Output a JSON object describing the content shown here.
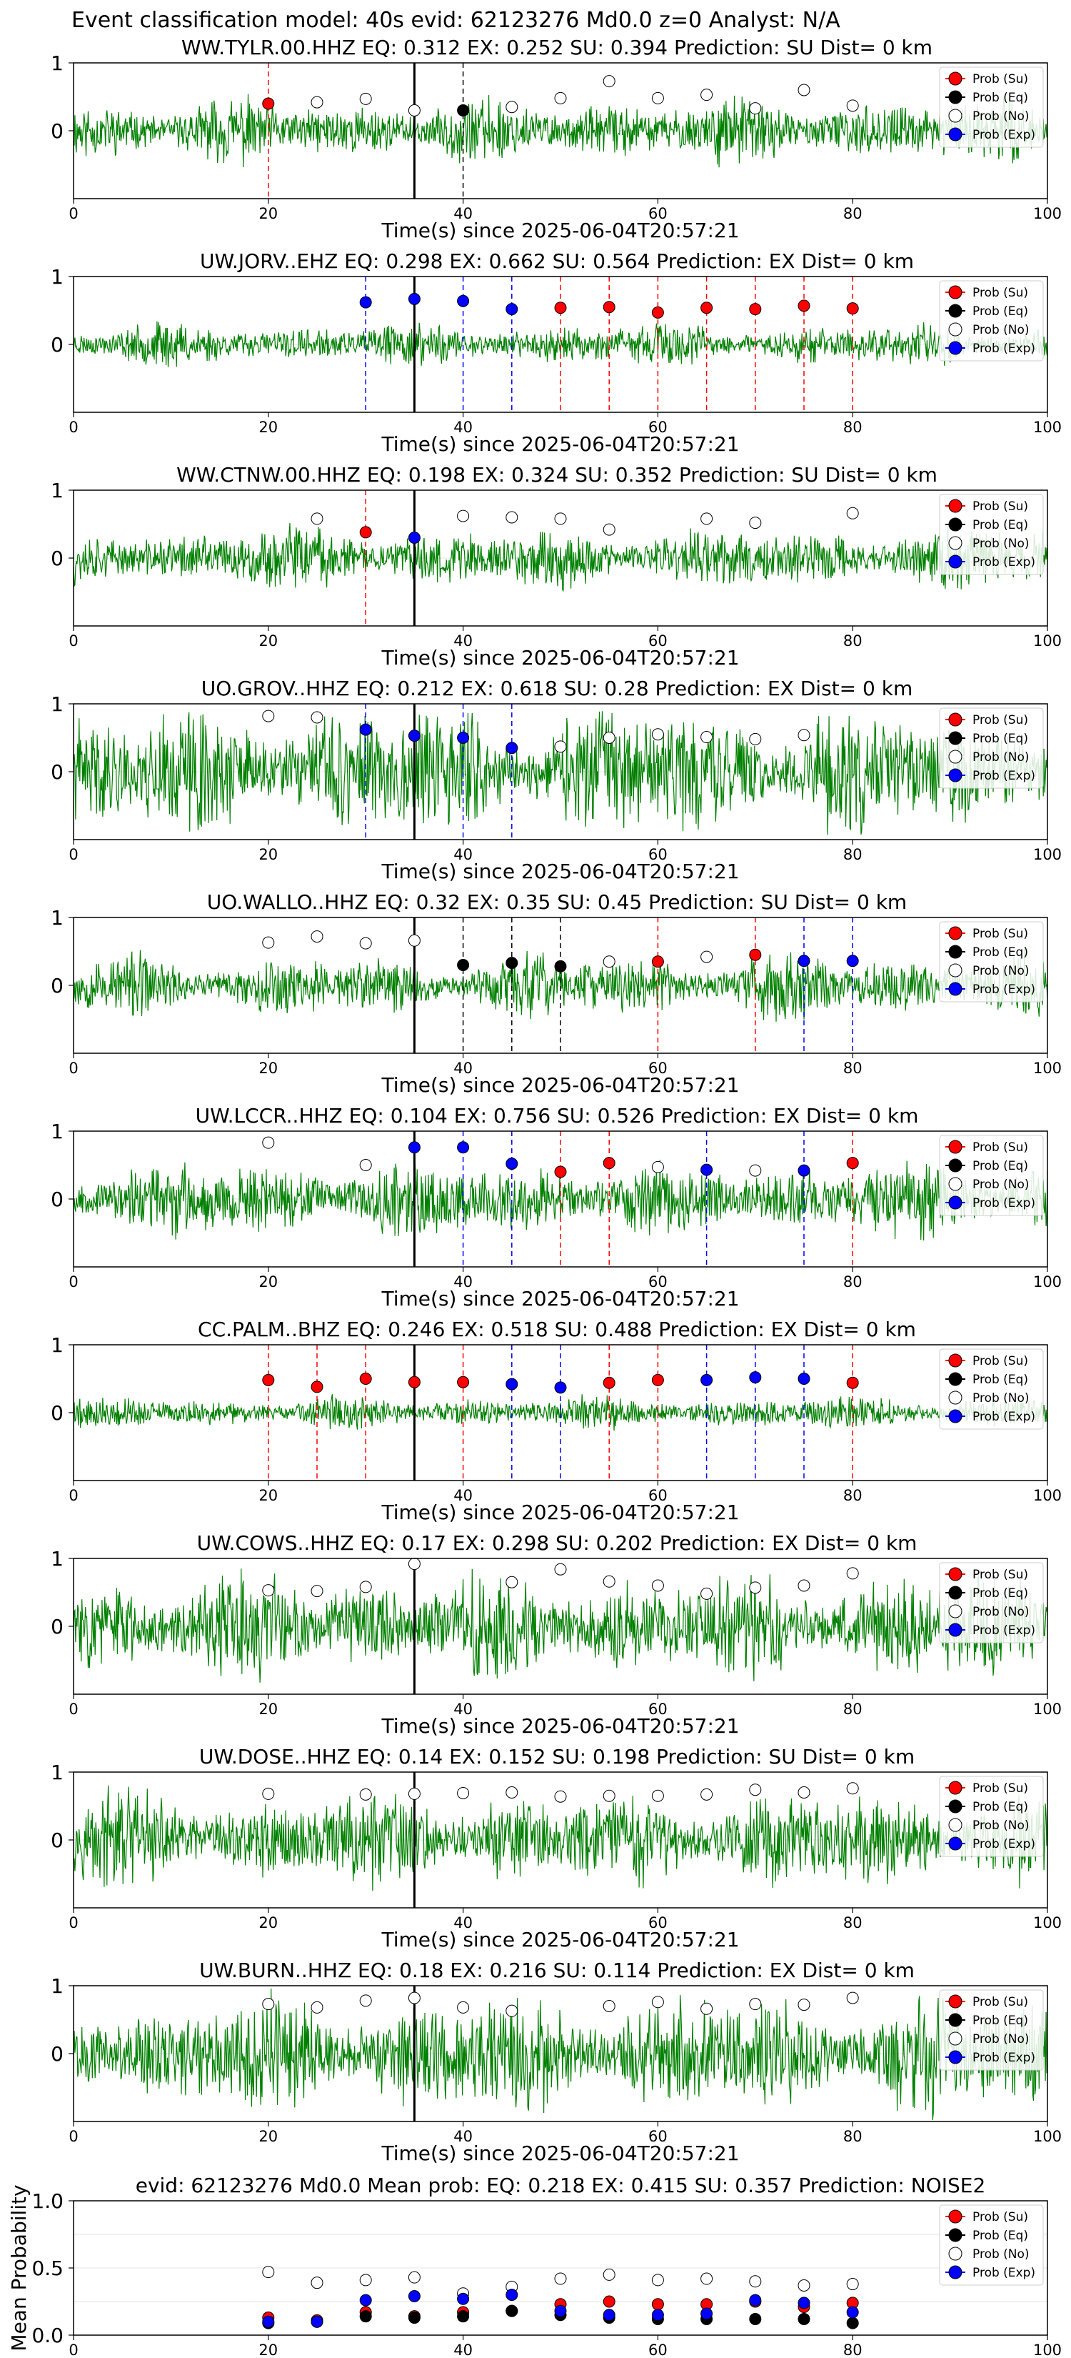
{
  "figure": {
    "suptitle": "Event classification model: 40s evid: 62123276 Md0.0 z=0 Analyst: N/A",
    "xlabel": "Time(s) since 2025-06-04T20:57:21",
    "legend": [
      "Prob (Su)",
      "Prob (Eq)",
      "Prob (No)",
      "Prob (Exp)"
    ],
    "colors": {
      "waveform": "#008000",
      "su": "#ff0000",
      "eq": "#000000",
      "no": "#ffffff",
      "exp": "#0000ff",
      "marker_line": "#000000"
    },
    "event_marker_x": 35,
    "prob_times": [
      20,
      25,
      30,
      35,
      40,
      45,
      50,
      55,
      60,
      65,
      70,
      75,
      80
    ]
  },
  "chart_data": [
    {
      "type": "line",
      "title": "WW.TYLR.00.HHZ    EQ: 0.312  EX: 0.252  SU: 0.394   Prediction: SU    Dist= 0 km",
      "xlim": [
        0,
        100
      ],
      "ylim": [
        -1,
        1
      ],
      "xticks": [
        0,
        20,
        40,
        60,
        80,
        100
      ],
      "yticks": [
        1,
        0
      ],
      "classes": [
        "su",
        "no",
        "no",
        "no",
        "eq",
        "no",
        "no",
        "no",
        "no",
        "no",
        "no",
        "no",
        "no"
      ],
      "probs": [
        0.4,
        0.42,
        0.47,
        0.3,
        0.3,
        0.35,
        0.48,
        0.73,
        0.48,
        0.53,
        0.33,
        0.6,
        0.37
      ],
      "amp": 0.3,
      "seed": 11
    },
    {
      "type": "line",
      "title": "UW.JORV..EHZ   EQ: 0.298  EX: 0.662  SU: 0.564   Prediction: EX    Dist= 0 km",
      "xlim": [
        0,
        100
      ],
      "ylim": [
        -1,
        1
      ],
      "xticks": [
        0,
        20,
        40,
        60,
        80,
        100
      ],
      "yticks": [
        1,
        0
      ],
      "classes": [
        "none",
        "none",
        "exp",
        "exp",
        "exp",
        "exp",
        "su",
        "su",
        "su",
        "su",
        "su",
        "su",
        "su"
      ],
      "probs": [
        null,
        null,
        0.62,
        0.67,
        0.64,
        0.52,
        0.54,
        0.55,
        0.47,
        0.54,
        0.52,
        0.57,
        0.53
      ],
      "amp": 0.2,
      "seed": 23
    },
    {
      "type": "line",
      "title": "WW.CTNW.00.HHZ   EQ: 0.198  EX: 0.324  SU: 0.352   Prediction: SU    Dist= 0 km",
      "xlim": [
        0,
        100
      ],
      "ylim": [
        -1,
        1
      ],
      "xticks": [
        0,
        20,
        40,
        60,
        80,
        100
      ],
      "yticks": [
        1,
        0
      ],
      "classes": [
        "none",
        "no",
        "su",
        "exp",
        "no",
        "no",
        "no",
        "no",
        "none",
        "no",
        "no",
        "none",
        "no"
      ],
      "probs": [
        null,
        0.58,
        0.38,
        0.3,
        0.62,
        0.6,
        0.58,
        0.42,
        null,
        0.58,
        0.52,
        null,
        0.66
      ],
      "amp": 0.3,
      "seed": 37
    },
    {
      "type": "line",
      "title": "UO.GROV..HHZ   EQ: 0.212  EX: 0.618  SU: 0.28   Prediction: EX    Dist= 0 km",
      "xlim": [
        0,
        100
      ],
      "ylim": [
        -1,
        1
      ],
      "xticks": [
        0,
        20,
        40,
        60,
        80,
        100
      ],
      "yticks": [
        1,
        0
      ],
      "classes": [
        "no",
        "no",
        "exp",
        "exp",
        "exp",
        "exp",
        "no",
        "no",
        "no",
        "no",
        "no",
        "no",
        "none"
      ],
      "probs": [
        0.82,
        0.8,
        0.62,
        0.53,
        0.5,
        0.35,
        0.37,
        0.5,
        0.55,
        0.51,
        0.48,
        0.54,
        null
      ],
      "amp": 0.6,
      "seed": 41
    },
    {
      "type": "line",
      "title": "UO.WALLO..HHZ   EQ: 0.32  EX: 0.35  SU: 0.45   Prediction: SU    Dist= 0 km",
      "xlim": [
        0,
        100
      ],
      "ylim": [
        -1,
        1
      ],
      "xticks": [
        0,
        20,
        40,
        60,
        80,
        100
      ],
      "yticks": [
        1,
        0
      ],
      "classes": [
        "no",
        "no",
        "no",
        "no",
        "eq",
        "eq",
        "eq",
        "no",
        "su",
        "no",
        "su",
        "exp",
        "exp"
      ],
      "probs": [
        0.63,
        0.72,
        0.62,
        0.66,
        0.3,
        0.33,
        0.28,
        0.35,
        0.35,
        0.42,
        0.45,
        0.36,
        0.36
      ],
      "amp": 0.3,
      "seed": 53
    },
    {
      "type": "line",
      "title": "UW.LCCR..HHZ   EQ: 0.104  EX: 0.756  SU: 0.526   Prediction: EX    Dist= 0 km",
      "xlim": [
        0,
        100
      ],
      "ylim": [
        -1,
        1
      ],
      "xticks": [
        0,
        20,
        40,
        60,
        80,
        100
      ],
      "yticks": [
        1,
        0
      ],
      "classes": [
        "no",
        "none",
        "no",
        "exp",
        "exp",
        "exp",
        "su",
        "su",
        "no",
        "exp",
        "no",
        "exp",
        "su"
      ],
      "probs": [
        0.83,
        null,
        0.5,
        0.76,
        0.76,
        0.52,
        0.4,
        0.53,
        0.47,
        0.43,
        0.42,
        0.42,
        0.53
      ],
      "amp": 0.35,
      "seed": 67
    },
    {
      "type": "line",
      "title": "CC.PALM..BHZ   EQ: 0.246  EX: 0.518  SU: 0.488   Prediction: EX    Dist= 0 km",
      "xlim": [
        0,
        100
      ],
      "ylim": [
        -1,
        1
      ],
      "xticks": [
        0,
        20,
        40,
        60,
        80,
        100
      ],
      "yticks": [
        1,
        0
      ],
      "classes": [
        "su",
        "su",
        "su",
        "su",
        "su",
        "exp",
        "exp",
        "su",
        "su",
        "exp",
        "exp",
        "exp",
        "su"
      ],
      "probs": [
        0.48,
        0.38,
        0.5,
        0.45,
        0.45,
        0.42,
        0.37,
        0.44,
        0.48,
        0.48,
        0.52,
        0.5,
        0.44
      ],
      "amp": 0.15,
      "seed": 79
    },
    {
      "type": "line",
      "title": "UW.COWS..HHZ   EQ: 0.17  EX: 0.298  SU: 0.202   Prediction: EX    Dist= 0 km",
      "xlim": [
        0,
        100
      ],
      "ylim": [
        -1,
        1
      ],
      "xticks": [
        0,
        20,
        40,
        60,
        80,
        100
      ],
      "yticks": [
        1,
        0
      ],
      "classes": [
        "no",
        "no",
        "no",
        "no",
        "none",
        "no",
        "no",
        "no",
        "no",
        "no",
        "no",
        "no",
        "no"
      ],
      "probs": [
        0.53,
        0.52,
        0.58,
        0.92,
        null,
        0.65,
        0.84,
        0.66,
        0.6,
        0.48,
        0.57,
        0.6,
        0.78
      ],
      "amp": 0.5,
      "seed": 83
    },
    {
      "type": "line",
      "title": "UW.DOSE..HHZ   EQ: 0.14  EX: 0.152  SU: 0.198   Prediction: SU    Dist= 0 km",
      "xlim": [
        0,
        100
      ],
      "ylim": [
        -1,
        1
      ],
      "xticks": [
        0,
        20,
        40,
        60,
        80,
        100
      ],
      "yticks": [
        1,
        0
      ],
      "classes": [
        "no",
        "none",
        "no",
        "no",
        "no",
        "no",
        "no",
        "no",
        "no",
        "no",
        "no",
        "no",
        "no"
      ],
      "probs": [
        0.68,
        null,
        0.67,
        0.68,
        0.69,
        0.7,
        0.64,
        0.65,
        0.65,
        0.67,
        0.74,
        0.7,
        0.76
      ],
      "amp": 0.45,
      "seed": 97
    },
    {
      "type": "line",
      "title": "UW.BURN..HHZ   EQ: 0.18  EX: 0.216  SU: 0.114   Prediction: EX    Dist= 0 km",
      "xlim": [
        0,
        100
      ],
      "ylim": [
        -1,
        1
      ],
      "xticks": [
        0,
        20,
        40,
        60,
        80,
        100
      ],
      "yticks": [
        1,
        0
      ],
      "classes": [
        "no",
        "no",
        "no",
        "no",
        "no",
        "no",
        "none",
        "no",
        "no",
        "no",
        "no",
        "no",
        "no"
      ],
      "probs": [
        0.73,
        0.68,
        0.78,
        0.82,
        0.68,
        0.63,
        null,
        0.7,
        0.76,
        0.66,
        0.73,
        0.72,
        0.82
      ],
      "amp": 0.55,
      "seed": 101
    },
    {
      "type": "scatter",
      "title": "evid: 62123276  Md0.0   Mean prob:   EQ: 0.218  EX: 0.415  SU: 0.357   Prediction: NOISE2",
      "ylabel": "Mean Probability",
      "xlim": [
        0,
        100
      ],
      "ylim": [
        0,
        1
      ],
      "xticks": [
        0,
        20,
        40,
        60,
        80,
        100
      ],
      "yticks": [
        0.0,
        0.5,
        1.0
      ],
      "mean": {
        "su": [
          0.13,
          0.11,
          0.17,
          0.14,
          0.17,
          0.18,
          0.23,
          0.25,
          0.23,
          0.23,
          0.25,
          0.21,
          0.24
        ],
        "eq": [
          0.09,
          0.1,
          0.14,
          0.13,
          0.14,
          0.18,
          0.15,
          0.13,
          0.12,
          0.12,
          0.12,
          0.12,
          0.09
        ],
        "no": [
          0.47,
          0.39,
          0.41,
          0.43,
          0.31,
          0.36,
          0.42,
          0.45,
          0.41,
          0.42,
          0.4,
          0.37,
          0.38
        ],
        "exp": [
          0.1,
          0.1,
          0.26,
          0.29,
          0.27,
          0.3,
          0.18,
          0.15,
          0.15,
          0.16,
          0.26,
          0.24,
          0.17
        ]
      }
    }
  ]
}
